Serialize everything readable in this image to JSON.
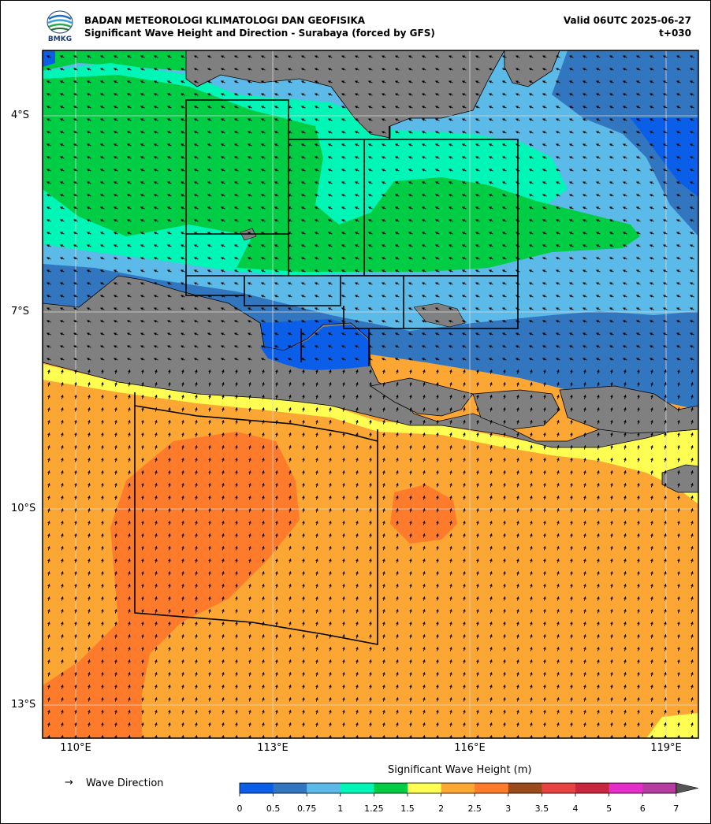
{
  "header": {
    "org": "BADAN METEOROLOGI KLIMATOLOGI DAN GEOFISIKA",
    "product": "Significant Wave Height and Direction - Surabaya (forced by GFS)",
    "valid": "Valid 06UTC 2025-06-27",
    "step": "t+030",
    "logo_text": "BMKG"
  },
  "map": {
    "extent": {
      "lon_min": 109.5,
      "lon_max": 119.5,
      "lat_min": -13.5,
      "lat_max": -3.0
    },
    "lat_labels": [
      "4°S",
      "7°S",
      "10°S",
      "13°S"
    ],
    "lon_labels": [
      "110°E",
      "113°E",
      "116°E",
      "119°E"
    ],
    "land_color": "#808080",
    "grid": true
  },
  "legend": {
    "arrow": "→",
    "label": "Wave Direction"
  },
  "colorbar": {
    "title": "Significant Wave Height (m)",
    "ticks": [
      "0",
      "0.5",
      "0.75",
      "1",
      "1.25",
      "1.5",
      "2",
      "2.5",
      "3",
      "3.5",
      "4",
      "5",
      "6",
      "7"
    ],
    "colors": [
      "#0b5ee8",
      "#3276bf",
      "#5cbae8",
      "#00f6b6",
      "#00cc44",
      "#fdfd52",
      "#fca633",
      "#fd7b2a",
      "#9b4b1b",
      "#e84343",
      "#c9253c",
      "#e52ec9",
      "#b43d9f"
    ],
    "extend_color": "#555555"
  }
}
